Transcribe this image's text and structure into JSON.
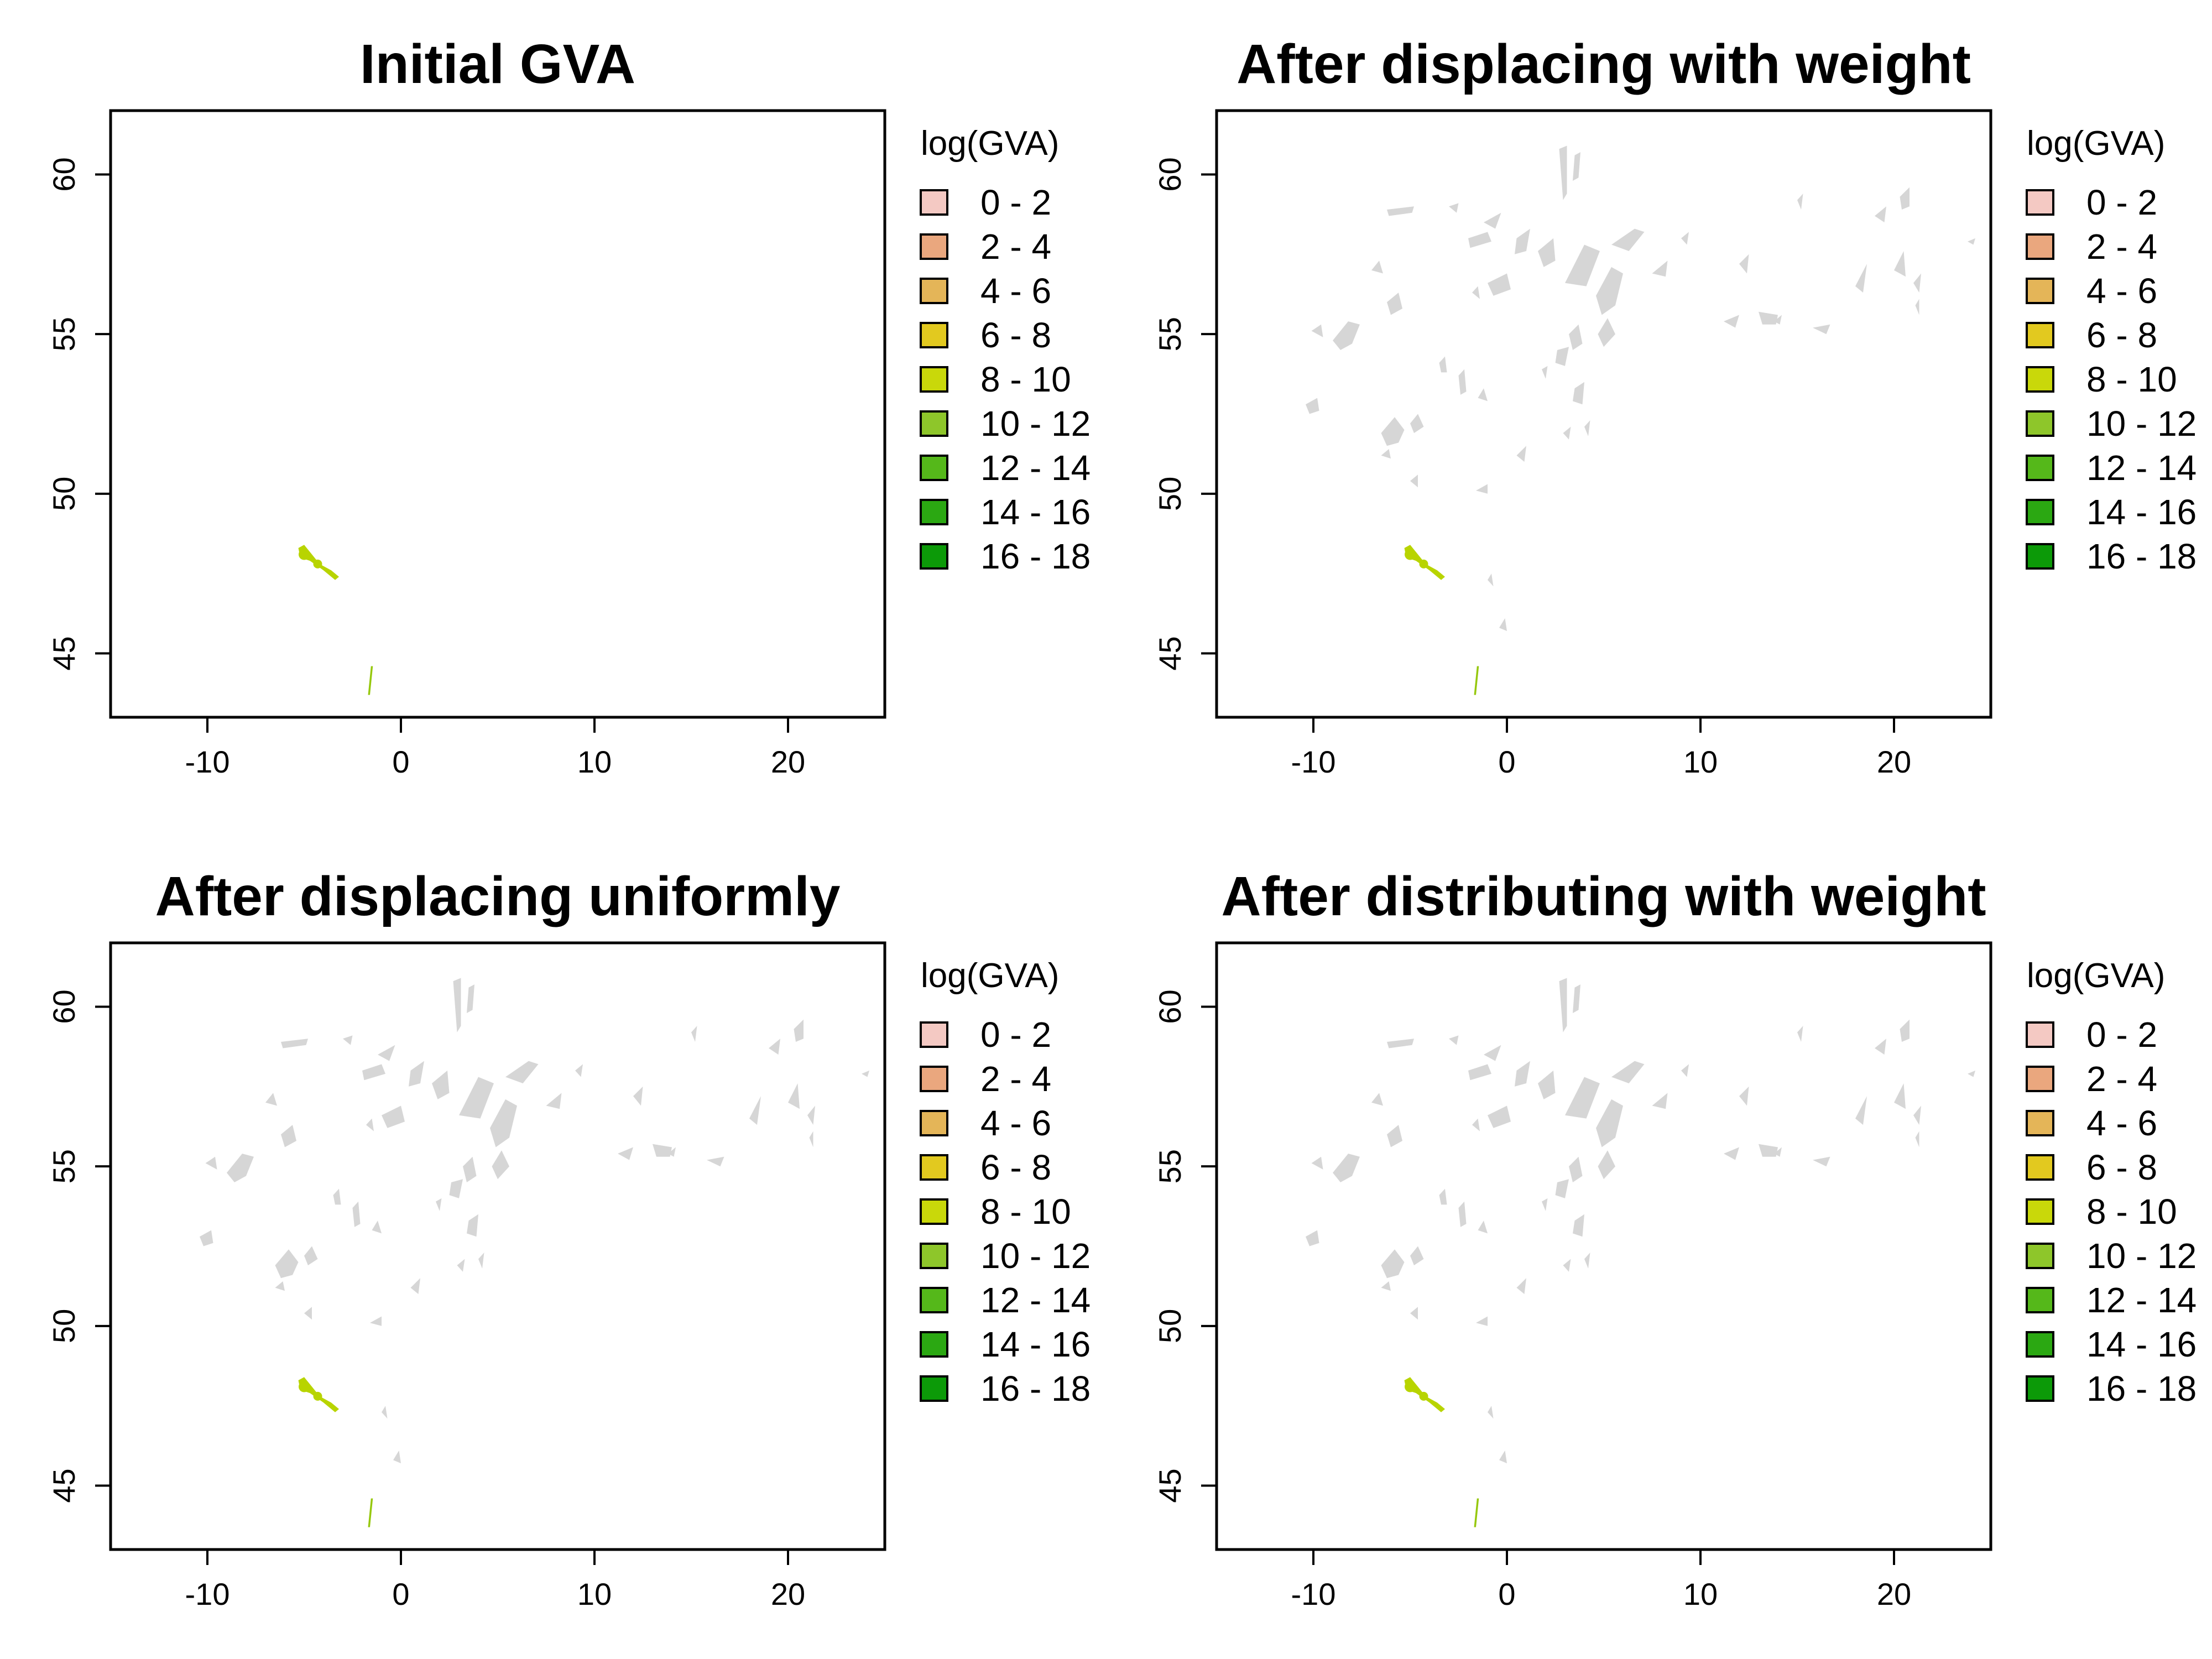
{
  "colors": {
    "no_data_region": "#d6d6d6",
    "class_8_10": "#b8d400",
    "class_10_12": "#96c80e",
    "axis": "#000000",
    "background": "#ffffff"
  },
  "chart_data": [
    {
      "type": "map",
      "title": "Initial GVA",
      "xlim": [
        -15,
        25
      ],
      "ylim": [
        43,
        62
      ],
      "x_ticks": [
        -10,
        0,
        10,
        20
      ],
      "y_ticks": [
        45,
        50,
        55,
        60
      ],
      "legend": {
        "title": "log(GVA)",
        "placement": "right",
        "classes": [
          {
            "label": "0 - 2",
            "color": "#f4c9c3"
          },
          {
            "label": "2 - 4",
            "color": "#eaa77e"
          },
          {
            "label": "4 - 6",
            "color": "#e4b558"
          },
          {
            "label": "6 - 8",
            "color": "#e2c91f"
          },
          {
            "label": "8 - 10",
            "color": "#c9d80a"
          },
          {
            "label": "10 - 12",
            "color": "#8ec62a"
          },
          {
            "label": "12 - 14",
            "color": "#55b81a"
          },
          {
            "label": "14 - 16",
            "color": "#2ba812"
          },
          {
            "label": "16 - 18",
            "color": "#0c9a08"
          }
        ]
      },
      "show_grey_regions": false,
      "colored_regions": [
        {
          "lon": -5.0,
          "lat": 48.0,
          "class": "8 - 10"
        },
        {
          "lon": -1.6,
          "lat": 44.0,
          "class": "10 - 12"
        }
      ]
    },
    {
      "type": "map",
      "title": "After displacing with weight",
      "xlim": [
        -15,
        25
      ],
      "ylim": [
        43,
        62
      ],
      "x_ticks": [
        -10,
        0,
        10,
        20
      ],
      "y_ticks": [
        45,
        50,
        55,
        60
      ],
      "legend": {
        "title": "log(GVA)",
        "placement": "right",
        "classes": [
          {
            "label": "0 - 2",
            "color": "#f4c9c3"
          },
          {
            "label": "2 - 4",
            "color": "#eaa77e"
          },
          {
            "label": "4 - 6",
            "color": "#e4b558"
          },
          {
            "label": "6 - 8",
            "color": "#e2c91f"
          },
          {
            "label": "8 - 10",
            "color": "#c9d80a"
          },
          {
            "label": "10 - 12",
            "color": "#8ec62a"
          },
          {
            "label": "12 - 14",
            "color": "#55b81a"
          },
          {
            "label": "14 - 16",
            "color": "#2ba812"
          },
          {
            "label": "16 - 18",
            "color": "#0c9a08"
          }
        ]
      },
      "show_grey_regions": true,
      "colored_regions": [
        {
          "lon": -5.0,
          "lat": 48.0,
          "class": "8 - 10"
        },
        {
          "lon": -1.6,
          "lat": 44.0,
          "class": "10 - 12"
        }
      ]
    },
    {
      "type": "map",
      "title": "After displacing uniformly",
      "xlim": [
        -15,
        25
      ],
      "ylim": [
        43,
        62
      ],
      "x_ticks": [
        -10,
        0,
        10,
        20
      ],
      "y_ticks": [
        45,
        50,
        55,
        60
      ],
      "legend": {
        "title": "log(GVA)",
        "placement": "right",
        "classes": [
          {
            "label": "0 - 2",
            "color": "#f4c9c3"
          },
          {
            "label": "2 - 4",
            "color": "#eaa77e"
          },
          {
            "label": "4 - 6",
            "color": "#e4b558"
          },
          {
            "label": "6 - 8",
            "color": "#e2c91f"
          },
          {
            "label": "8 - 10",
            "color": "#c9d80a"
          },
          {
            "label": "10 - 12",
            "color": "#8ec62a"
          },
          {
            "label": "12 - 14",
            "color": "#55b81a"
          },
          {
            "label": "14 - 16",
            "color": "#2ba812"
          },
          {
            "label": "16 - 18",
            "color": "#0c9a08"
          }
        ]
      },
      "show_grey_regions": true,
      "colored_regions": [
        {
          "lon": -5.0,
          "lat": 48.0,
          "class": "8 - 10"
        },
        {
          "lon": -1.6,
          "lat": 44.0,
          "class": "10 - 12"
        }
      ]
    },
    {
      "type": "map",
      "title": "After distributing with weight",
      "xlim": [
        -15,
        25
      ],
      "ylim": [
        43,
        62
      ],
      "x_ticks": [
        -10,
        0,
        10,
        20
      ],
      "y_ticks": [
        45,
        50,
        55,
        60
      ],
      "legend": {
        "title": "log(GVA)",
        "placement": "right",
        "classes": [
          {
            "label": "0 - 2",
            "color": "#f4c9c3"
          },
          {
            "label": "2 - 4",
            "color": "#eaa77e"
          },
          {
            "label": "4 - 6",
            "color": "#e4b558"
          },
          {
            "label": "6 - 8",
            "color": "#e2c91f"
          },
          {
            "label": "8 - 10",
            "color": "#c9d80a"
          },
          {
            "label": "10 - 12",
            "color": "#8ec62a"
          },
          {
            "label": "12 - 14",
            "color": "#55b81a"
          },
          {
            "label": "14 - 16",
            "color": "#2ba812"
          },
          {
            "label": "16 - 18",
            "color": "#0c9a08"
          }
        ]
      },
      "show_grey_regions": true,
      "colored_regions": [
        {
          "lon": -5.0,
          "lat": 48.0,
          "class": "8 - 10"
        },
        {
          "lon": -1.6,
          "lat": 44.0,
          "class": "10 - 12"
        }
      ]
    }
  ]
}
